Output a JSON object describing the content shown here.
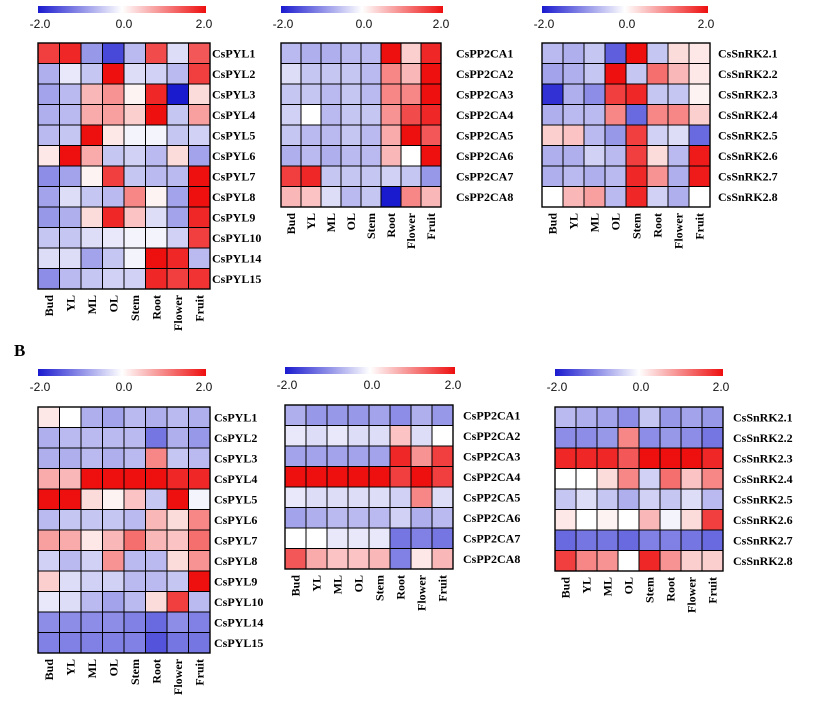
{
  "panel_labels": [
    "",
    "B"
  ],
  "colors": {
    "low": "#1a1acf",
    "mid": "#ffffff",
    "high": "#ee0f0f",
    "grid": "#000000"
  },
  "colorbar": {
    "min_label": "-2.0",
    "mid_label": "0.0",
    "max_label": "2.0"
  },
  "tissues": [
    "Bud",
    "YL",
    "ML",
    "OL",
    "Stem",
    "Root",
    "Flower",
    "Fruit"
  ],
  "chart_data": [
    {
      "type": "heatmap",
      "section": "A",
      "title": "",
      "xlabel": "",
      "ylabel": "",
      "zlim": [
        -2,
        2
      ],
      "rows": [
        "CsPYL1",
        "CsPYL2",
        "CsPYL3",
        "CsPYL4",
        "CsPYL5",
        "CsPYL6",
        "CsPYL7",
        "CsPYL8",
        "CsPYL9",
        "CsPYL10",
        "CsPYL14",
        "CsPYL15"
      ],
      "columns": [
        "Bud",
        "YL",
        "ML",
        "OL",
        "Stem",
        "Root",
        "Flower",
        "Fruit"
      ],
      "values": [
        [
          1.6,
          1.8,
          -0.9,
          -1.6,
          -0.6,
          1.5,
          -0.3,
          1.4
        ],
        [
          -0.7,
          -0.2,
          -0.5,
          2.0,
          -0.3,
          -0.4,
          -0.6,
          1.6
        ],
        [
          -0.8,
          -0.6,
          0.6,
          0.9,
          0.1,
          1.8,
          -2.0,
          0.3
        ],
        [
          -0.7,
          -0.6,
          0.7,
          0.8,
          0.4,
          2.0,
          -0.5,
          0.8
        ],
        [
          -0.6,
          -0.5,
          2.0,
          0.2,
          -0.1,
          -0.1,
          -0.5,
          -0.4
        ],
        [
          0.2,
          2.0,
          0.7,
          -0.5,
          -0.4,
          -0.6,
          0.3,
          -0.8
        ],
        [
          -1.0,
          -0.8,
          0.1,
          1.6,
          -0.5,
          -0.6,
          -0.6,
          2.0
        ],
        [
          -0.8,
          -0.3,
          -0.5,
          -0.6,
          1.0,
          0.1,
          -0.8,
          2.0
        ],
        [
          -0.9,
          -0.7,
          0.3,
          1.8,
          0.5,
          -0.3,
          -0.8,
          1.8
        ],
        [
          -0.5,
          -0.5,
          -0.3,
          -0.2,
          -0.1,
          -0.1,
          -0.4,
          1.6
        ],
        [
          -0.3,
          -0.3,
          -0.8,
          -0.5,
          -0.1,
          2.0,
          1.8,
          -0.6
        ],
        [
          -1.0,
          -0.6,
          -0.5,
          -0.4,
          -0.4,
          1.8,
          1.6,
          1.7
        ]
      ]
    },
    {
      "type": "heatmap",
      "section": "A",
      "title": "",
      "xlabel": "",
      "ylabel": "",
      "zlim": [
        -2,
        2
      ],
      "rows": [
        "CsPP2CA1",
        "CsPP2CA2",
        "CsPP2CA3",
        "CsPP2CA4",
        "CsPP2CA5",
        "CsPP2CA6",
        "CsPP2CA7",
        "CsPP2CA8"
      ],
      "columns": [
        "Bud",
        "YL",
        "ML",
        "OL",
        "Stem",
        "Root",
        "Flower",
        "Fruit"
      ],
      "values": [
        [
          -0.6,
          -0.7,
          -0.7,
          -0.6,
          -0.6,
          2.0,
          0.4,
          1.8
        ],
        [
          -0.3,
          -0.5,
          -0.5,
          -0.5,
          -0.6,
          1.0,
          0.6,
          2.0
        ],
        [
          -0.5,
          -0.5,
          -0.6,
          -0.5,
          -0.6,
          1.0,
          1.0,
          2.0
        ],
        [
          -0.4,
          0.0,
          -0.6,
          -0.5,
          -0.5,
          0.9,
          1.5,
          1.8
        ],
        [
          -0.5,
          -0.6,
          -0.6,
          -0.5,
          -0.6,
          0.7,
          2.0,
          1.4
        ],
        [
          -0.7,
          -0.6,
          -0.7,
          -0.6,
          -0.6,
          0.6,
          0.0,
          2.0
        ],
        [
          1.6,
          1.8,
          -0.5,
          -0.5,
          -0.5,
          -0.4,
          -0.5,
          -0.9
        ],
        [
          0.6,
          0.5,
          -0.3,
          -0.6,
          -0.5,
          -2.0,
          1.0,
          0.6
        ]
      ]
    },
    {
      "type": "heatmap",
      "section": "A",
      "title": "",
      "xlabel": "",
      "ylabel": "",
      "zlim": [
        -2,
        2
      ],
      "rows": [
        "CsSnRK2.1",
        "CsSnRK2.2",
        "CsSnRK2.3",
        "CsSnRK2.4",
        "CsSnRK2.5",
        "CsSnRK2.6",
        "CsSnRK2.7",
        "CsSnRK2.8"
      ],
      "columns": [
        "Bud",
        "YL",
        "ML",
        "OL",
        "Stem",
        "Root",
        "Flower",
        "Fruit"
      ],
      "values": [
        [
          -0.6,
          -0.7,
          -0.5,
          -1.4,
          2.0,
          -0.5,
          0.3,
          0.2
        ],
        [
          -0.8,
          -0.7,
          -0.5,
          2.0,
          -0.5,
          1.2,
          0.6,
          0.2
        ],
        [
          -1.8,
          -0.7,
          -1.0,
          1.6,
          1.8,
          -0.5,
          -0.5,
          0.1
        ],
        [
          -0.7,
          -0.6,
          -0.6,
          1.0,
          -1.3,
          1.0,
          1.0,
          0.4
        ],
        [
          0.4,
          0.5,
          -0.6,
          -0.9,
          1.6,
          -0.4,
          -0.3,
          -1.3
        ],
        [
          -0.7,
          -0.7,
          -0.4,
          -0.6,
          1.6,
          0.3,
          -0.6,
          1.9
        ],
        [
          -0.7,
          -0.6,
          -0.7,
          -0.6,
          1.8,
          0.9,
          -0.7,
          1.9
        ],
        [
          0.0,
          0.6,
          0.8,
          -0.6,
          1.8,
          -0.4,
          -0.7,
          0.0
        ]
      ]
    },
    {
      "type": "heatmap",
      "section": "B",
      "title": "",
      "xlabel": "",
      "ylabel": "",
      "zlim": [
        -2,
        2
      ],
      "rows": [
        "CsPYL1",
        "CsPYL2",
        "CsPYL3",
        "CsPYL4",
        "CsPYL5",
        "CsPYL6",
        "CsPYL7",
        "CsPYL8",
        "CsPYL9",
        "CsPYL10",
        "CsPYL14",
        "CsPYL15"
      ],
      "columns": [
        "Bud",
        "YL",
        "ML",
        "OL",
        "Stem",
        "Root",
        "Flower",
        "Fruit"
      ],
      "values": [
        [
          0.2,
          0.0,
          -0.7,
          -0.8,
          -0.6,
          -0.7,
          -0.6,
          -0.7
        ],
        [
          -0.7,
          -0.6,
          -0.6,
          -0.6,
          -0.6,
          -1.2,
          -0.7,
          -0.9
        ],
        [
          -0.7,
          -0.7,
          -0.6,
          -0.7,
          -0.6,
          1.0,
          -0.5,
          -0.6
        ],
        [
          0.7,
          0.6,
          2.0,
          2.0,
          2.0,
          2.0,
          1.8,
          1.8
        ],
        [
          2.0,
          2.0,
          0.3,
          0.1,
          0.5,
          -0.5,
          2.0,
          -0.1
        ],
        [
          -0.6,
          -0.5,
          -0.5,
          -0.5,
          -0.6,
          0.6,
          0.3,
          1.0
        ],
        [
          0.8,
          0.7,
          0.2,
          0.6,
          1.2,
          0.6,
          0.5,
          1.2
        ],
        [
          -0.4,
          -0.6,
          -0.4,
          0.9,
          -0.6,
          -0.6,
          0.3,
          0.9
        ],
        [
          0.4,
          -0.3,
          -0.4,
          -0.4,
          -0.6,
          -0.6,
          -0.5,
          2.0
        ],
        [
          -0.2,
          -0.3,
          -0.6,
          -0.8,
          -0.6,
          0.3,
          1.6,
          -0.6
        ],
        [
          -1.0,
          -1.0,
          -1.0,
          -1.0,
          -1.1,
          -1.3,
          -1.0,
          -1.1
        ],
        [
          -1.1,
          -1.1,
          -1.1,
          -1.1,
          -1.1,
          -1.5,
          -1.2,
          -1.2
        ]
      ]
    },
    {
      "type": "heatmap",
      "section": "B",
      "title": "",
      "xlabel": "",
      "ylabel": "",
      "zlim": [
        -2,
        2
      ],
      "rows": [
        "CsPP2CA1",
        "CsPP2CA2",
        "CsPP2CA3",
        "CsPP2CA4",
        "CsPP2CA5",
        "CsPP2CA6",
        "CsPP2CA7",
        "CsPP2CA8"
      ],
      "columns": [
        "Bud",
        "YL",
        "ML",
        "OL",
        "Stem",
        "Root",
        "Flower",
        "Fruit"
      ],
      "values": [
        [
          -0.7,
          -0.9,
          -0.9,
          -0.9,
          -0.8,
          -1.0,
          -0.7,
          -0.9
        ],
        [
          -0.2,
          -0.3,
          -0.2,
          -0.3,
          -0.3,
          0.5,
          -0.3,
          0.0
        ],
        [
          -0.8,
          -0.8,
          -0.8,
          -0.8,
          -0.8,
          1.8,
          0.9,
          1.6
        ],
        [
          2.0,
          2.0,
          2.0,
          2.0,
          2.0,
          1.6,
          2.0,
          1.6
        ],
        [
          -0.2,
          -0.3,
          -0.3,
          -0.3,
          -0.3,
          -0.4,
          1.0,
          -0.3
        ],
        [
          -0.8,
          -0.7,
          -0.6,
          -0.6,
          -0.6,
          -0.4,
          -0.7,
          -0.6
        ],
        [
          0.0,
          0.0,
          -0.2,
          -0.2,
          -0.2,
          -1.2,
          -1.1,
          -1.2
        ],
        [
          1.4,
          0.7,
          0.5,
          0.5,
          0.6,
          -1.1,
          0.2,
          0.6
        ]
      ]
    },
    {
      "type": "heatmap",
      "section": "B",
      "title": "",
      "xlabel": "",
      "ylabel": "",
      "zlim": [
        -2,
        2
      ],
      "rows": [
        "CsSnRK2.1",
        "CsSnRK2.2",
        "CsSnRK2.3",
        "CsSnRK2.4",
        "CsSnRK2.5",
        "CsSnRK2.6",
        "CsSnRK2.7",
        "CsSnRK2.8"
      ],
      "columns": [
        "Bud",
        "YL",
        "ML",
        "OL",
        "Stem",
        "Root",
        "Flower",
        "Fruit"
      ],
      "values": [
        [
          -0.6,
          -0.7,
          -0.8,
          -1.0,
          -0.5,
          -0.9,
          -0.8,
          -0.9
        ],
        [
          -1.0,
          -1.0,
          -0.9,
          1.0,
          -1.0,
          -0.9,
          -1.0,
          -1.2
        ],
        [
          1.8,
          1.8,
          1.8,
          1.4,
          2.0,
          2.0,
          2.0,
          1.8
        ],
        [
          0.0,
          0.0,
          0.3,
          1.0,
          -0.4,
          1.2,
          0.5,
          1.0
        ],
        [
          -0.5,
          -0.3,
          -0.5,
          -0.7,
          -0.4,
          -0.5,
          -0.3,
          -0.6
        ],
        [
          0.2,
          0.0,
          0.1,
          0.0,
          0.6,
          -0.1,
          0.3,
          1.6
        ],
        [
          -1.3,
          -1.2,
          -1.2,
          -1.3,
          -1.1,
          -1.1,
          -1.2,
          -1.3
        ],
        [
          1.6,
          1.0,
          0.9,
          0.0,
          1.8,
          0.9,
          0.4,
          0.4
        ]
      ]
    }
  ]
}
